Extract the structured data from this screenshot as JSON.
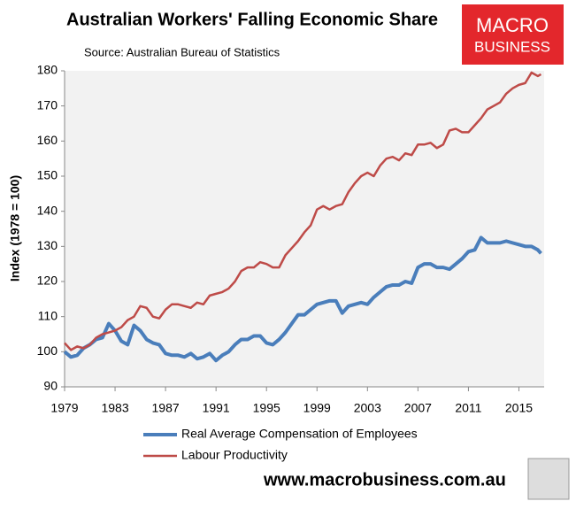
{
  "chart_data": {
    "type": "line",
    "title": "Australian Workers' Falling Economic Share",
    "subtitle": "Source: Australian Bureau of Statistics",
    "y_label": "Index (1978 = 100)",
    "logo": [
      "MACRO",
      "BUSINESS"
    ],
    "website": "www.macrobusiness.com.au",
    "x": [
      1979,
      1979.5,
      1980,
      1980.5,
      1981,
      1981.5,
      1982,
      1982.5,
      1983,
      1983.5,
      1984,
      1984.5,
      1985,
      1985.5,
      1986,
      1986.5,
      1987,
      1987.5,
      1988,
      1988.5,
      1989,
      1989.5,
      1990,
      1990.5,
      1991,
      1991.5,
      1992,
      1992.5,
      1993,
      1993.5,
      1994,
      1994.5,
      1995,
      1995.5,
      1996,
      1996.5,
      1997,
      1997.5,
      1998,
      1998.5,
      1999,
      1999.5,
      2000,
      2000.5,
      2001,
      2001.5,
      2002,
      2002.5,
      2003,
      2003.5,
      2004,
      2004.5,
      2005,
      2005.5,
      2006,
      2006.5,
      2007,
      2007.5,
      2008,
      2008.5,
      2009,
      2009.5,
      2010,
      2010.5,
      2011,
      2011.5,
      2012,
      2012.5,
      2013,
      2013.5,
      2014,
      2014.5,
      2015,
      2015.5,
      2016,
      2016.5,
      2016.75
    ],
    "series": [
      {
        "name": "Real Average Compensation of Employees",
        "color": "#4a7ebb",
        "width": 4,
        "values": [
          100,
          98.5,
          99,
          101,
          102,
          103.5,
          104,
          108,
          106,
          103,
          102,
          107.5,
          106,
          103.5,
          102.5,
          102,
          99.5,
          99,
          99,
          98.5,
          99.5,
          98,
          98.5,
          99.5,
          97.5,
          99,
          100,
          102,
          103.5,
          103.5,
          104.5,
          104.5,
          102.5,
          102,
          103.5,
          105.5,
          108,
          110.5,
          110.5,
          112,
          113.5,
          114,
          114.5,
          114.5,
          111,
          113,
          113.5,
          114,
          113.5,
          115.5,
          117,
          118.5,
          119,
          119,
          120,
          119.5,
          124,
          125,
          125,
          124,
          124,
          123.5,
          125,
          126.5,
          128.5,
          129,
          132.5,
          131,
          131,
          131,
          131.5,
          131,
          130.5,
          130,
          130,
          129,
          128
        ]
      },
      {
        "name": "Labour Productivity",
        "color": "#be4b48",
        "width": 2.5,
        "values": [
          102.5,
          100.5,
          101.5,
          101,
          102,
          104,
          105,
          105.5,
          106,
          107,
          109,
          110,
          113,
          112.5,
          110,
          109.5,
          112,
          113.5,
          113.5,
          113,
          112.5,
          114,
          113.5,
          116,
          116.5,
          117,
          118,
          120,
          123,
          124,
          124,
          125.5,
          125,
          124,
          124,
          127.5,
          129.5,
          131.5,
          134,
          136,
          140.5,
          141.5,
          140.5,
          141.5,
          142,
          145.5,
          148,
          150,
          151,
          150,
          153,
          155,
          155.5,
          154.5,
          156.5,
          156,
          159,
          159,
          159.5,
          158,
          159,
          163,
          163.5,
          162.5,
          162.5,
          164.5,
          166.5,
          169,
          170,
          171,
          173.5,
          175,
          176,
          176.5,
          179.5,
          178.5,
          179
        ]
      }
    ],
    "xlim": [
      1979,
      2017
    ],
    "xticks": [
      1979,
      1983,
      1987,
      1991,
      1995,
      1999,
      2003,
      2007,
      2011,
      2015
    ],
    "ylim": [
      90,
      180
    ],
    "yticks": [
      90,
      100,
      110,
      120,
      130,
      140,
      150,
      160,
      170,
      180
    ],
    "grid": false,
    "legend": "bottom"
  }
}
